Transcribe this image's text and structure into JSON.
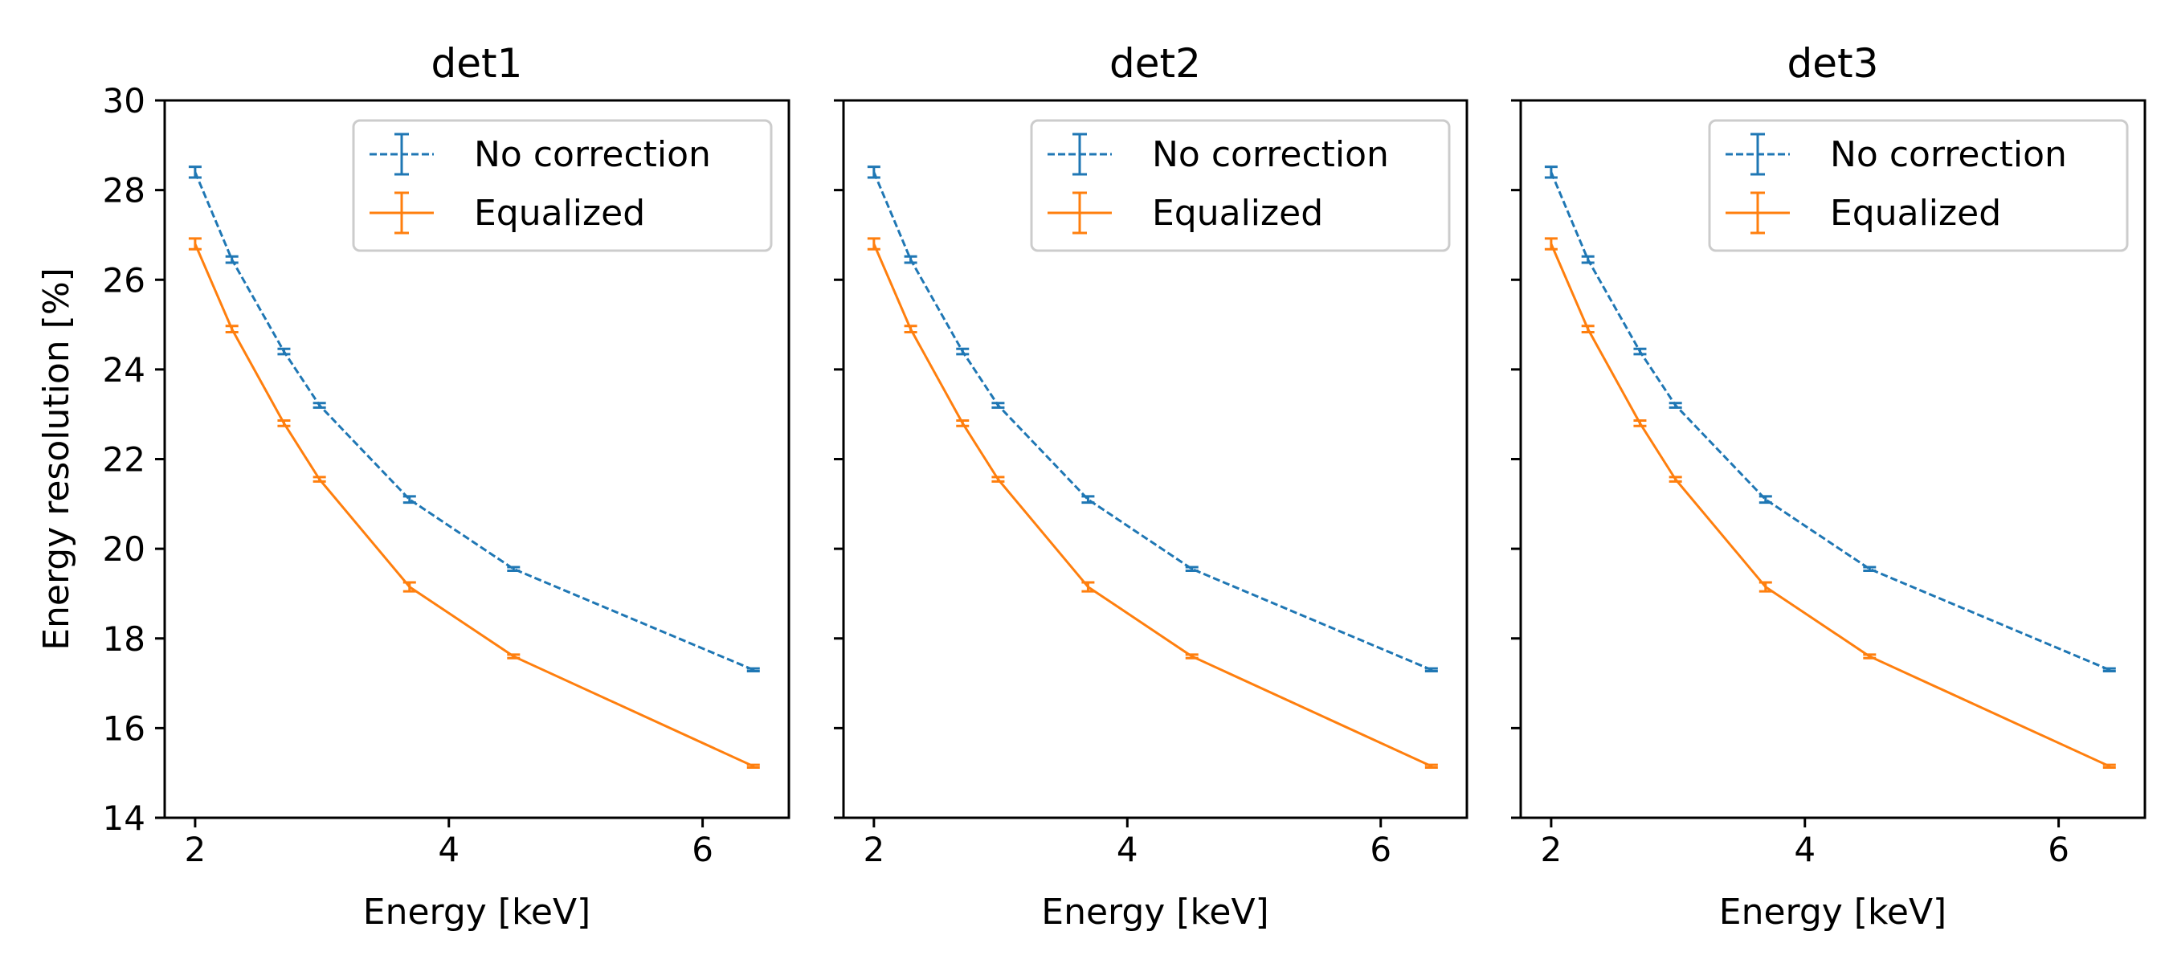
{
  "chart_data": [
    {
      "type": "line",
      "title": "det1",
      "xlabel": "Energy [keV]",
      "ylabel": "Energy resolution [%]",
      "xlim": [
        1.76,
        6.68
      ],
      "ylim": [
        14,
        30
      ],
      "xticks": [
        2,
        4,
        6
      ],
      "yticks": [
        14,
        16,
        18,
        20,
        22,
        24,
        26,
        28,
        30
      ],
      "legend_position": "upper right",
      "x": [
        2.0,
        2.29,
        2.7,
        2.98,
        3.69,
        4.51,
        6.4
      ],
      "series": [
        {
          "name": "No correction",
          "color": "#1f77b4",
          "linestyle": "dashed",
          "values": [
            28.4,
            26.45,
            24.4,
            23.2,
            21.1,
            19.55,
            17.3
          ],
          "errors": [
            0.12,
            0.07,
            0.06,
            0.05,
            0.07,
            0.04,
            0.03
          ]
        },
        {
          "name": "Equalized",
          "color": "#ff7f0e",
          "linestyle": "solid",
          "values": [
            26.8,
            24.9,
            22.8,
            21.55,
            19.15,
            17.6,
            15.15
          ],
          "errors": [
            0.12,
            0.07,
            0.06,
            0.05,
            0.1,
            0.04,
            0.03
          ]
        }
      ]
    },
    {
      "type": "line",
      "title": "det2",
      "xlabel": "Energy [keV]",
      "ylabel": "",
      "xlim": [
        1.76,
        6.68
      ],
      "ylim": [
        14,
        30
      ],
      "xticks": [
        2,
        4,
        6
      ],
      "yticks": [
        14,
        16,
        18,
        20,
        22,
        24,
        26,
        28,
        30
      ],
      "legend_position": "upper right",
      "x": [
        2.0,
        2.29,
        2.7,
        2.98,
        3.69,
        4.51,
        6.4
      ],
      "series": [
        {
          "name": "No correction",
          "color": "#1f77b4",
          "linestyle": "dashed",
          "values": [
            28.4,
            26.45,
            24.4,
            23.2,
            21.1,
            19.55,
            17.3
          ],
          "errors": [
            0.12,
            0.07,
            0.06,
            0.05,
            0.07,
            0.04,
            0.03
          ]
        },
        {
          "name": "Equalized",
          "color": "#ff7f0e",
          "linestyle": "solid",
          "values": [
            26.8,
            24.9,
            22.8,
            21.55,
            19.15,
            17.6,
            15.15
          ],
          "errors": [
            0.12,
            0.07,
            0.06,
            0.05,
            0.1,
            0.04,
            0.03
          ]
        }
      ]
    },
    {
      "type": "line",
      "title": "det3",
      "xlabel": "Energy [keV]",
      "ylabel": "",
      "xlim": [
        1.76,
        6.68
      ],
      "ylim": [
        14,
        30
      ],
      "xticks": [
        2,
        4,
        6
      ],
      "yticks": [
        14,
        16,
        18,
        20,
        22,
        24,
        26,
        28,
        30
      ],
      "legend_position": "upper right",
      "x": [
        2.0,
        2.29,
        2.7,
        2.98,
        3.69,
        4.51,
        6.4
      ],
      "series": [
        {
          "name": "No correction",
          "color": "#1f77b4",
          "linestyle": "dashed",
          "values": [
            28.4,
            26.45,
            24.4,
            23.2,
            21.1,
            19.55,
            17.3
          ],
          "errors": [
            0.12,
            0.07,
            0.06,
            0.05,
            0.07,
            0.04,
            0.03
          ]
        },
        {
          "name": "Equalized",
          "color": "#ff7f0e",
          "linestyle": "solid",
          "values": [
            26.8,
            24.9,
            22.8,
            21.55,
            19.15,
            17.6,
            15.15
          ],
          "errors": [
            0.12,
            0.07,
            0.06,
            0.05,
            0.1,
            0.04,
            0.03
          ]
        }
      ]
    }
  ]
}
